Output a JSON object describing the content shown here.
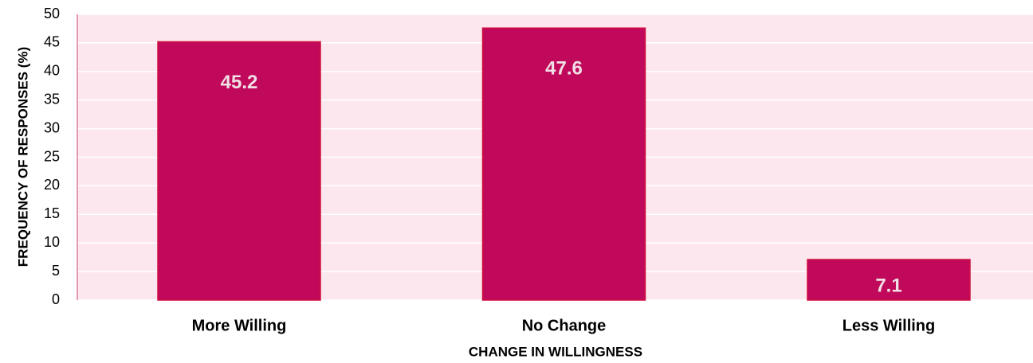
{
  "chart_data": {
    "type": "bar",
    "categories": [
      "More Willing",
      "No Change",
      "Less Willing"
    ],
    "values": [
      45.2,
      47.6,
      7.1
    ],
    "color": "#c0095a",
    "xlabel": "CHANGE IN WILLINGNESS",
    "ylabel": "FREQUENCY OF RESPONSES (%)",
    "ylim": [
      0,
      50
    ],
    "yticks": [
      0,
      5,
      10,
      15,
      20,
      25,
      30,
      35,
      40,
      45,
      50
    ],
    "grid": true
  }
}
